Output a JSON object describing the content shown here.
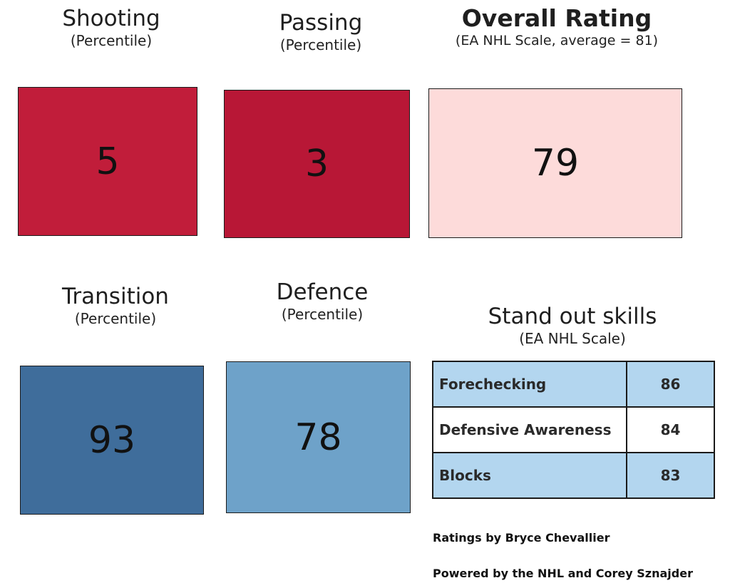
{
  "shooting": {
    "title": "Shooting",
    "subtitle": "(Percentile)",
    "value": "5",
    "color": "#c11d3a"
  },
  "passing": {
    "title": "Passing",
    "subtitle": "(Percentile)",
    "value": "3",
    "color": "#b81736"
  },
  "overall": {
    "title": "Overall Rating",
    "subtitle": "(EA NHL Scale, average = 81)",
    "value": "79",
    "color": "#fddbda"
  },
  "transition": {
    "title": "Transition",
    "subtitle": "(Percentile)",
    "value": "93",
    "color": "#3f6d9b"
  },
  "defence": {
    "title": "Defence",
    "subtitle": "(Percentile)",
    "value": "78",
    "color": "#6ea2c9"
  },
  "standout": {
    "title": "Stand out skills",
    "subtitle": "(EA NHL Scale)",
    "rows": [
      {
        "skill": "Forechecking",
        "value": "86"
      },
      {
        "skill": "Defensive Awareness",
        "value": "84"
      },
      {
        "skill": "Blocks",
        "value": "83"
      }
    ]
  },
  "credits": {
    "ratings": "Ratings by Bryce Chevallier",
    "powered": "Powered by the NHL and Corey Sznajder"
  }
}
